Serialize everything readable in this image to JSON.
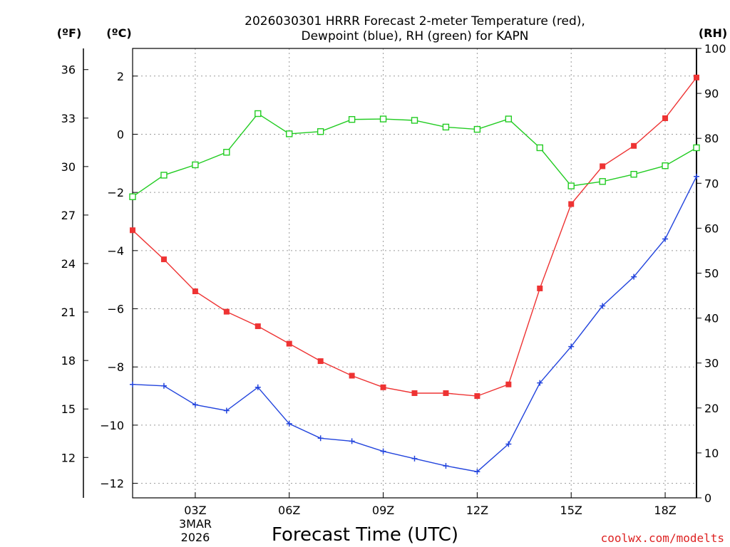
{
  "chart_data": {
    "type": "line",
    "title_line1": "2026030301 HRRR Forecast 2-meter Temperature (red),",
    "title_line2": "Dewpoint (blue), RH (green) for KAPN",
    "xlabel": "Forecast Time (UTC)",
    "x_hours": [
      1,
      2,
      3,
      4,
      5,
      6,
      7,
      8,
      9,
      10,
      11,
      12,
      13,
      14,
      15,
      16,
      17,
      18,
      19
    ],
    "xlim": [
      1,
      19
    ],
    "x_ticks": [
      {
        "hour": 3,
        "label": "03Z"
      },
      {
        "hour": 6,
        "label": "06Z"
      },
      {
        "hour": 9,
        "label": "09Z"
      },
      {
        "hour": 12,
        "label": "12Z"
      },
      {
        "hour": 15,
        "label": "15Z"
      },
      {
        "hour": 18,
        "label": "18Z"
      }
    ],
    "date_label_line1": "3MAR",
    "date_label_line2": "2026",
    "left_axis_f": {
      "unit_label": "(ºF)",
      "ticks": [
        "12",
        "15",
        "18",
        "21",
        "24",
        "27",
        "30",
        "33",
        "36"
      ]
    },
    "celsius_axis": {
      "unit_label": "(ºC)",
      "ticks": [
        "−12",
        "−10",
        "−8",
        "−6",
        "−4",
        "−2",
        "0",
        "2"
      ],
      "ylim": [
        -12.5,
        2.95
      ]
    },
    "rh_axis": {
      "unit_label": "(RH)",
      "ticks": [
        "0",
        "10",
        "20",
        "30",
        "40",
        "50",
        "60",
        "70",
        "80",
        "90",
        "100"
      ],
      "ylim": [
        0,
        100
      ]
    },
    "series": [
      {
        "name": "Temperature (°C)",
        "color": "#ee3333",
        "marker": "filled-square",
        "axis": "celsius",
        "values": [
          -3.3,
          -4.3,
          -5.4,
          -6.1,
          -6.6,
          -7.2,
          -7.8,
          -8.3,
          -8.7,
          -8.9,
          -8.9,
          -9.0,
          -8.6,
          -5.3,
          -2.4,
          -1.1,
          -0.4,
          0.55,
          1.95
        ]
      },
      {
        "name": "Dewpoint (°C)",
        "color": "#2244dd",
        "marker": "plus",
        "axis": "celsius",
        "values": [
          -8.6,
          -8.65,
          -9.3,
          -9.5,
          -8.7,
          -9.95,
          -10.45,
          -10.55,
          -10.9,
          -11.15,
          -11.4,
          -11.6,
          -10.65,
          -8.55,
          -7.3,
          -5.9,
          -4.9,
          -3.6,
          -1.45
        ]
      },
      {
        "name": "RH (%)",
        "color": "#22cc22",
        "marker": "open-square",
        "axis": "rh",
        "values": [
          67,
          71.8,
          74.1,
          76.9,
          85.5,
          81.0,
          81.5,
          84.2,
          84.3,
          84.0,
          82.5,
          82.0,
          84.3,
          77.9,
          69.4,
          70.4,
          72.0,
          73.9,
          77.9
        ]
      }
    ]
  },
  "credit": "coolwx.com/modelts"
}
